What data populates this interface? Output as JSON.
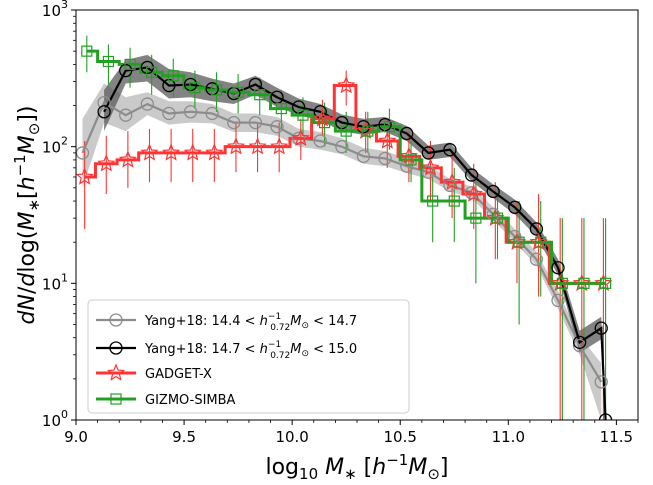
{
  "chart_data": {
    "type": "line",
    "xlabel": "log₁₀ M∗ [h⁻¹M⊙]",
    "ylabel": "dN/dlog(M∗[h⁻¹M⊙])",
    "xlim": [
      9.0,
      11.6
    ],
    "ylim": [
      1,
      1000
    ],
    "yscale": "log",
    "grid": false,
    "legend_position": "lower-left",
    "x_ticks": [
      {
        "value": 9.0,
        "label": "9.0"
      },
      {
        "value": 9.5,
        "label": "9.5"
      },
      {
        "value": 10.0,
        "label": "10.0"
      },
      {
        "value": 10.5,
        "label": "10.5"
      },
      {
        "value": 11.0,
        "label": "11.0"
      },
      {
        "value": 11.5,
        "label": "11.5"
      }
    ],
    "y_ticks": [
      {
        "value": 1,
        "base": "10",
        "exp": "0"
      },
      {
        "value": 10,
        "base": "10",
        "exp": "1"
      },
      {
        "value": 100,
        "base": "10",
        "exp": "2"
      },
      {
        "value": 1000,
        "base": "10",
        "exp": "3"
      }
    ],
    "series": [
      {
        "name": "Yang+18: 14.4 < h⁻¹₀.₇₂M⊙ < 14.7",
        "legend_parts": {
          "prefix": "Yang+18: 14.4 < ",
          "h": "h",
          "sup": "−1",
          "sub": "0.72",
          "m": "M",
          "msub": "⊙",
          "suffix": " < 14.7"
        },
        "color": "#8c8c8c",
        "band_color": "#b4b4b4",
        "marker": "circle",
        "x": [
          9.03,
          9.13,
          9.23,
          9.33,
          9.43,
          9.53,
          9.63,
          9.73,
          9.83,
          9.93,
          10.03,
          10.13,
          10.23,
          10.33,
          10.43,
          10.53,
          10.63,
          10.73,
          10.83,
          10.93,
          11.03,
          11.13,
          11.23,
          11.33,
          11.43
        ],
        "y": [
          90,
          210,
          170,
          205,
          175,
          180,
          175,
          150,
          150,
          140,
          115,
          110,
          100,
          85,
          82,
          72,
          65,
          52,
          46,
          32,
          22,
          15,
          7.5,
          3.5,
          1.9
        ],
        "band_low": [
          50,
          150,
          130,
          170,
          145,
          150,
          148,
          128,
          128,
          120,
          100,
          95,
          88,
          75,
          72,
          64,
          58,
          47,
          42,
          29,
          20,
          13.5,
          6.5,
          3.0,
          1.0
        ],
        "band_high": [
          160,
          290,
          230,
          250,
          215,
          215,
          205,
          175,
          175,
          165,
          135,
          128,
          115,
          98,
          93,
          82,
          73,
          58,
          51,
          36,
          25,
          17,
          8.7,
          4.1,
          2.6
        ]
      },
      {
        "name": "Yang+18: 14.7 < h⁻¹₀.₇₂M⊙ < 15.0",
        "legend_parts": {
          "prefix": "Yang+18: 14.7 < ",
          "h": "h",
          "sup": "−1",
          "sub": "0.72",
          "m": "M",
          "msub": "⊙",
          "suffix": " < 15.0"
        },
        "color": "#000000",
        "band_color": "#5a5a5a",
        "marker": "circle",
        "x": [
          9.13,
          9.23,
          9.33,
          9.43,
          9.53,
          9.63,
          9.73,
          9.83,
          9.93,
          10.03,
          10.13,
          10.23,
          10.33,
          10.43,
          10.53,
          10.63,
          10.73,
          10.83,
          10.93,
          11.03,
          11.13,
          11.23,
          11.33,
          11.43,
          11.45
        ],
        "y": [
          180,
          360,
          380,
          280,
          285,
          265,
          245,
          285,
          230,
          195,
          180,
          150,
          140,
          145,
          125,
          90,
          95,
          62,
          47,
          36,
          25,
          13,
          3.7,
          4.7,
          1.0
        ],
        "band_low": [
          130,
          290,
          300,
          225,
          230,
          215,
          205,
          240,
          195,
          170,
          155,
          130,
          122,
          128,
          110,
          80,
          84,
          56,
          42,
          32,
          22,
          11.5,
          3.1,
          3.9,
          1.0
        ],
        "band_high": [
          260,
          430,
          470,
          370,
          350,
          315,
          290,
          330,
          270,
          225,
          205,
          172,
          160,
          165,
          142,
          102,
          107,
          70,
          53,
          41,
          28,
          15,
          4.5,
          5.7,
          1.2
        ]
      },
      {
        "name": "GADGET-X",
        "legend_parts": {
          "prefix": "GADGET-X"
        },
        "color": "#ff3333",
        "error_color": "#ff3333",
        "marker": "star",
        "x": [
          9.04,
          9.14,
          9.24,
          9.34,
          9.44,
          9.54,
          9.64,
          9.74,
          9.84,
          9.94,
          10.04,
          10.14,
          10.25,
          10.34,
          10.44,
          10.54,
          10.64,
          10.74,
          10.84,
          10.94,
          11.04,
          11.14,
          11.24,
          11.34,
          11.44
        ],
        "y": [
          60,
          75,
          80,
          90,
          90,
          90,
          90,
          100,
          100,
          100,
          115,
          160,
          280,
          130,
          110,
          85,
          70,
          55,
          45,
          30,
          20,
          20,
          10,
          10,
          10
        ],
        "err_low": [
          25,
          45,
          50,
          55,
          55,
          55,
          55,
          65,
          65,
          65,
          80,
          120,
          200,
          90,
          70,
          55,
          40,
          30,
          25,
          15,
          10,
          8,
          1,
          1,
          1
        ],
        "err_high": [
          110,
          120,
          130,
          135,
          135,
          135,
          135,
          150,
          150,
          150,
          160,
          220,
          360,
          180,
          160,
          130,
          110,
          90,
          75,
          55,
          40,
          45,
          30,
          30,
          30
        ]
      },
      {
        "name": "GIZMO-SIMBA",
        "legend_parts": {
          "prefix": "GIZMO-SIMBA"
        },
        "color": "#22a022",
        "error_color": "#22a022",
        "marker": "square",
        "x": [
          9.05,
          9.15,
          9.25,
          9.35,
          9.45,
          9.55,
          9.65,
          9.75,
          9.85,
          9.95,
          10.05,
          10.15,
          10.25,
          10.35,
          10.45,
          10.55,
          10.65,
          10.75,
          10.85,
          10.95,
          11.05,
          11.15,
          11.25,
          11.35,
          11.45
        ],
        "y": [
          500,
          420,
          400,
          350,
          330,
          270,
          260,
          250,
          240,
          190,
          170,
          150,
          130,
          130,
          140,
          80,
          40,
          40,
          30,
          30,
          20,
          20,
          10,
          10,
          10
        ],
        "err_low": [
          350,
          280,
          270,
          240,
          230,
          190,
          180,
          175,
          170,
          135,
          120,
          100,
          90,
          90,
          95,
          55,
          20,
          20,
          10,
          15,
          5,
          8,
          1,
          1,
          1
        ],
        "err_high": [
          650,
          560,
          530,
          470,
          440,
          360,
          350,
          340,
          320,
          260,
          230,
          210,
          180,
          180,
          190,
          110,
          70,
          70,
          55,
          50,
          40,
          40,
          30,
          30,
          30
        ]
      }
    ]
  }
}
